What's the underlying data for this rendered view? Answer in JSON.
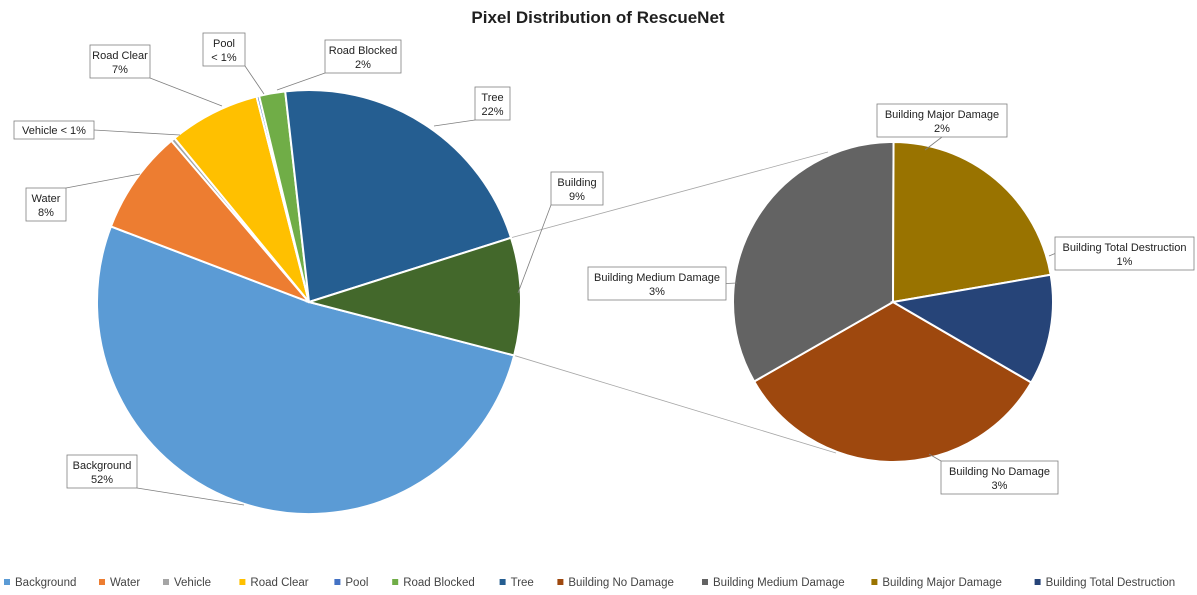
{
  "chart_data": {
    "type": "pie",
    "subtype": "bar-of-pie",
    "title": "Pixel Distribution of RescueNet",
    "legend_position": "bottom",
    "main_pie": [
      {
        "name": "Background",
        "value": 52,
        "label_name": "Background",
        "label_value": "52%",
        "color": "#5b9bd5"
      },
      {
        "name": "Water",
        "value": 8,
        "label_name": "Water",
        "label_value": "8%",
        "color": "#ed7d31"
      },
      {
        "name": "Vehicle",
        "value": 0.3,
        "label_name": "Vehicle < 1%",
        "label_value": "",
        "color": "#a5a5a5"
      },
      {
        "name": "Road Clear",
        "value": 7,
        "label_name": "Road Clear",
        "label_value": "7%",
        "color": "#ffc000"
      },
      {
        "name": "Pool",
        "value": 0.2,
        "label_name": "Pool",
        "label_value": "< 1%",
        "color": "#4472c4"
      },
      {
        "name": "Road Blocked",
        "value": 2,
        "label_name": "Road Blocked",
        "label_value": "2%",
        "color": "#70ad47"
      },
      {
        "name": "Tree",
        "value": 22,
        "label_name": "Tree",
        "label_value": "22%",
        "color": "#255e91"
      },
      {
        "name": "Building",
        "value": 9,
        "label_name": "Building",
        "label_value": "9%",
        "color": "#43682b"
      }
    ],
    "secondary_pie": [
      {
        "name": "Building No Damage",
        "value": 3,
        "label_name": "Building No Damage",
        "label_value": "3%",
        "color": "#9e480e"
      },
      {
        "name": "Building Medium Damage",
        "value": 3,
        "label_name": "Building Medium Damage",
        "label_value": "3%",
        "color": "#636363"
      },
      {
        "name": "Building Major Damage",
        "value": 2,
        "label_name": "Building Major Damage",
        "label_value": "2%",
        "color": "#997300"
      },
      {
        "name": "Building Total Destruction",
        "value": 1,
        "label_name": "Building Total Destruction",
        "label_value": "1%",
        "color": "#264478"
      }
    ],
    "legend": [
      {
        "name": "Background",
        "color": "#5b9bd5"
      },
      {
        "name": "Water",
        "color": "#ed7d31"
      },
      {
        "name": "Vehicle",
        "color": "#a5a5a5"
      },
      {
        "name": "Road Clear",
        "color": "#ffc000"
      },
      {
        "name": "Pool",
        "color": "#4472c4"
      },
      {
        "name": "Road Blocked",
        "color": "#70ad47"
      },
      {
        "name": "Tree",
        "color": "#255e91"
      },
      {
        "name": "Building No Damage",
        "color": "#9e480e"
      },
      {
        "name": "Building Medium Damage",
        "color": "#636363"
      },
      {
        "name": "Building Major Damage",
        "color": "#997300"
      },
      {
        "name": "Building Total Destruction",
        "color": "#264478"
      }
    ]
  }
}
